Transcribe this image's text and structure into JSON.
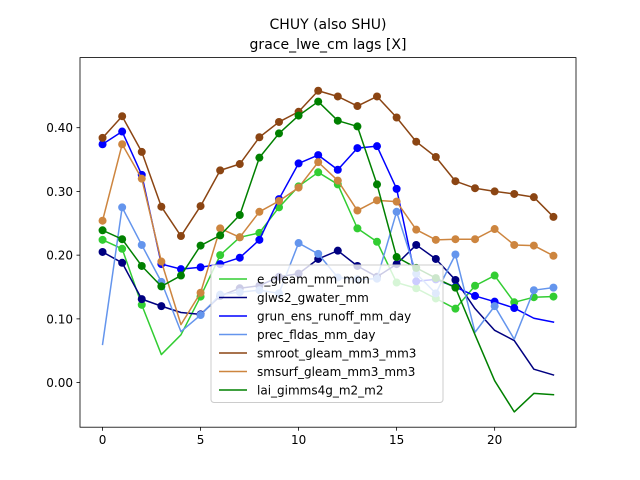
{
  "chart_data": {
    "type": "line",
    "title": "CHUY (also SHU)",
    "subtitle": "grace_lwe_cm lags [X]",
    "xlabel": "",
    "ylabel": "",
    "xlim": [
      -1.15,
      24.15
    ],
    "ylim": [
      -0.07,
      0.51
    ],
    "x_ticks": [
      0,
      5,
      10,
      15,
      20
    ],
    "y_ticks": [
      0.0,
      0.1,
      0.2,
      0.3,
      0.4
    ],
    "y_tick_labels": [
      "0.00",
      "0.10",
      "0.20",
      "0.30",
      "0.40"
    ],
    "grid": false,
    "legend_position": "lower-center",
    "x": [
      0,
      1,
      2,
      3,
      4,
      5,
      6,
      7,
      8,
      9,
      10,
      11,
      12,
      13,
      14,
      15,
      16,
      17,
      18,
      19,
      20,
      21,
      22,
      23
    ],
    "series": [
      {
        "name": "e_gleam_mm_mon",
        "color": "#32cd32",
        "values": [
          0.224,
          0.21,
          0.122,
          0.044,
          0.075,
          0.135,
          0.2,
          0.228,
          0.235,
          0.275,
          0.308,
          0.33,
          0.311,
          0.242,
          0.221,
          0.157,
          0.148,
          0.132,
          0.116,
          0.152,
          0.168,
          0.126,
          0.134,
          0.135
        ],
        "markers": [
          true,
          true,
          true,
          false,
          false,
          true,
          true,
          true,
          true,
          true,
          true,
          true,
          true,
          true,
          true,
          true,
          true,
          true,
          true,
          true,
          true,
          true,
          true,
          true
        ]
      },
      {
        "name": "glws2_gwater_mm",
        "color": "#000080",
        "values": [
          0.205,
          0.188,
          0.131,
          0.12,
          0.11,
          0.107,
          0.136,
          0.148,
          0.152,
          0.166,
          0.171,
          0.194,
          0.207,
          0.183,
          0.166,
          0.186,
          0.216,
          0.194,
          0.161,
          0.116,
          0.082,
          0.066,
          0.021,
          0.012
        ],
        "markers": [
          true,
          true,
          true,
          true,
          false,
          true,
          true,
          true,
          true,
          true,
          true,
          true,
          true,
          true,
          true,
          true,
          true,
          true,
          true,
          false,
          false,
          false,
          false,
          false
        ]
      },
      {
        "name": "grun_ens_runoff_mm_day",
        "color": "#0000ff",
        "values": [
          0.374,
          0.394,
          0.326,
          0.186,
          0.178,
          0.181,
          0.186,
          0.196,
          0.224,
          0.288,
          0.344,
          0.357,
          0.334,
          0.368,
          0.371,
          0.304,
          0.159,
          0.162,
          0.15,
          0.136,
          0.127,
          0.117,
          0.101,
          0.095
        ],
        "markers": [
          true,
          true,
          true,
          true,
          true,
          true,
          true,
          true,
          true,
          true,
          true,
          true,
          true,
          true,
          true,
          true,
          true,
          true,
          true,
          true,
          true,
          true,
          false,
          false
        ]
      },
      {
        "name": "prec_fldas_mm_day",
        "color": "#6495ed",
        "values": [
          0.06,
          0.275,
          0.216,
          0.158,
          0.08,
          0.106,
          0.138,
          0.142,
          0.145,
          0.14,
          0.219,
          0.202,
          0.165,
          0.162,
          0.163,
          0.268,
          0.171,
          0.14,
          0.201,
          0.079,
          0.12,
          0.068,
          0.145,
          0.149
        ],
        "markers": [
          false,
          true,
          true,
          true,
          false,
          true,
          true,
          true,
          true,
          true,
          true,
          true,
          true,
          true,
          true,
          true,
          true,
          true,
          true,
          false,
          true,
          false,
          true,
          true
        ]
      },
      {
        "name": "smroot_gleam_mm3_mm3",
        "color": "#8b4513",
        "values": [
          0.384,
          0.418,
          0.362,
          0.276,
          0.23,
          0.277,
          0.333,
          0.343,
          0.385,
          0.409,
          0.425,
          0.458,
          0.449,
          0.434,
          0.449,
          0.416,
          0.378,
          0.354,
          0.316,
          0.305,
          0.3,
          0.296,
          0.291,
          0.26
        ],
        "markers": [
          true,
          true,
          true,
          true,
          true,
          true,
          true,
          true,
          true,
          true,
          true,
          true,
          true,
          true,
          true,
          true,
          true,
          true,
          true,
          true,
          true,
          true,
          true,
          true
        ]
      },
      {
        "name": "smsurf_gleam_mm3_mm3",
        "color": "#cd853f",
        "values": [
          0.254,
          0.374,
          0.32,
          0.19,
          0.091,
          0.141,
          0.242,
          0.228,
          0.268,
          0.285,
          0.306,
          0.346,
          0.317,
          0.27,
          0.286,
          0.284,
          0.24,
          0.224,
          0.225,
          0.225,
          0.241,
          0.216,
          0.215,
          0.199
        ],
        "markers": [
          true,
          true,
          true,
          true,
          false,
          true,
          true,
          true,
          true,
          true,
          true,
          true,
          true,
          true,
          true,
          true,
          true,
          true,
          true,
          true,
          true,
          true,
          true,
          true
        ]
      },
      {
        "name": "lai_gimms4g_m2_m2",
        "color": "#008000",
        "values": [
          0.239,
          0.225,
          0.183,
          0.151,
          0.168,
          0.215,
          0.231,
          0.263,
          0.353,
          0.391,
          0.419,
          0.441,
          0.411,
          0.402,
          0.311,
          0.197,
          0.18,
          0.164,
          0.149,
          0.075,
          0.003,
          -0.046,
          -0.017,
          -0.019
        ],
        "markers": [
          true,
          true,
          true,
          true,
          true,
          true,
          true,
          true,
          true,
          true,
          true,
          true,
          true,
          true,
          true,
          true,
          true,
          true,
          true,
          false,
          false,
          false,
          false,
          false
        ]
      }
    ]
  }
}
